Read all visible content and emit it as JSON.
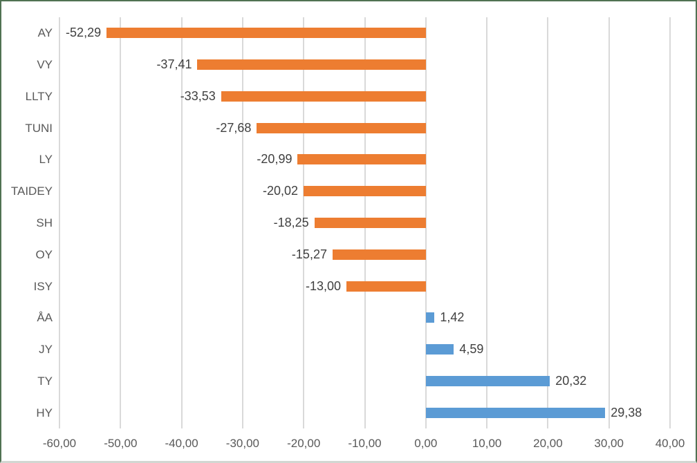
{
  "chart_data": {
    "type": "bar",
    "orientation": "horizontal",
    "title": "",
    "categories": [
      "AY",
      "VY",
      "LLTY",
      "TUNI",
      "LY",
      "TAIDEY",
      "SH",
      "OY",
      "ISY",
      "ÅA",
      "JY",
      "TY",
      "HY"
    ],
    "values": [
      -52.29,
      -37.41,
      -33.53,
      -27.68,
      -20.99,
      -20.02,
      -18.25,
      -15.27,
      -13.0,
      1.42,
      4.59,
      20.32,
      29.38
    ],
    "value_labels": [
      "-52,29",
      "-37,41",
      "-33,53",
      "-27,68",
      "-20,99",
      "-20,02",
      "-18,25",
      "-15,27",
      "-13,00",
      "1,42",
      "4,59",
      "20,32",
      "29,38"
    ],
    "xlim": [
      -60,
      40
    ],
    "x_ticks": [
      -60,
      -50,
      -40,
      -30,
      -20,
      -10,
      0,
      10,
      20,
      30,
      40
    ],
    "x_tick_labels": [
      "-60,00",
      "-50,00",
      "-40,00",
      "-30,00",
      "-20,00",
      "-10,00",
      "0,00",
      "10,00",
      "20,00",
      "30,00",
      "40,00"
    ],
    "grid": true,
    "legend": false,
    "colors": {
      "negative_bar": "#ED7D31",
      "positive_bar": "#5B9BD5",
      "gridline": "#D9D9D9",
      "axis_text": "#595959",
      "data_label_text": "#404040",
      "frame_border": "#507253"
    }
  }
}
